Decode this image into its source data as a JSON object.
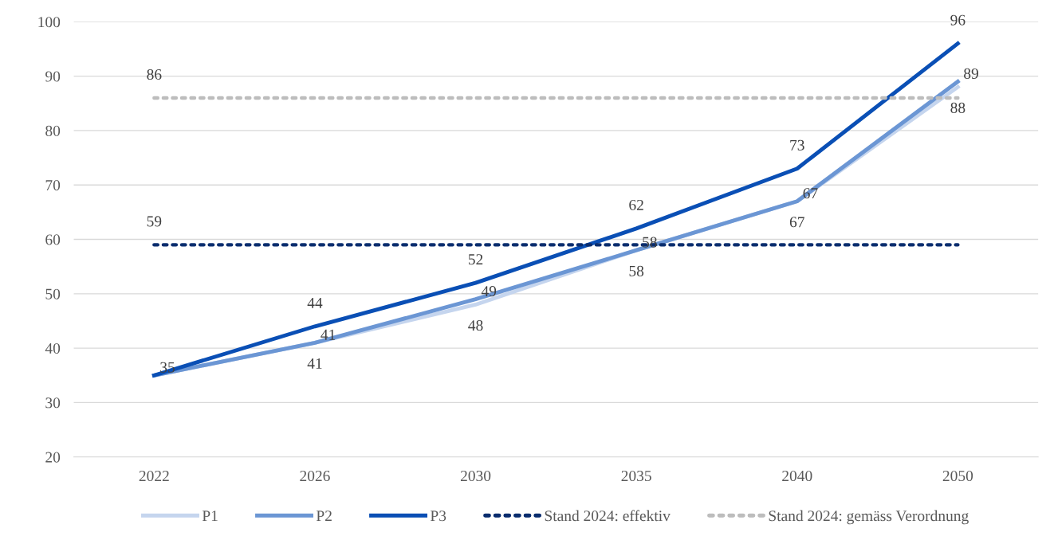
{
  "chart_data": {
    "type": "line",
    "categories": [
      "2022",
      "2026",
      "2030",
      "2035",
      "2040",
      "2050"
    ],
    "series": [
      {
        "name": "P1",
        "color": "#c5d5ee",
        "values": [
          35,
          41,
          48,
          58,
          67,
          88
        ],
        "value_labels": [
          null,
          "41",
          "48",
          "58",
          "67",
          "88"
        ]
      },
      {
        "name": "P2",
        "color": "#6b96d4",
        "values": [
          35,
          41,
          49,
          58,
          67,
          89
        ],
        "value_labels": [
          "35",
          "41",
          "49",
          "58",
          "67",
          "89"
        ]
      },
      {
        "name": "P3",
        "color": "#0a4fb5",
        "values": [
          35,
          44,
          52,
          62,
          73,
          96
        ],
        "value_labels": [
          null,
          "44",
          "52",
          "62",
          "73",
          "96"
        ]
      },
      {
        "name": "Stand 2024: effektiv",
        "color": "#0a2d6e",
        "line_style": "dotted",
        "values": [
          59,
          59,
          59,
          59,
          59,
          59
        ],
        "value_labels": [
          "59",
          null,
          null,
          null,
          null,
          null
        ]
      },
      {
        "name": "Stand 2024: gemäss Verordnung",
        "color": "#bdbdbd",
        "line_style": "dotted",
        "values": [
          86,
          86,
          86,
          86,
          86,
          86
        ],
        "value_labels": [
          "86",
          null,
          null,
          null,
          null,
          null
        ]
      }
    ],
    "ylim": [
      20,
      100
    ],
    "yticks": [
      20,
      30,
      40,
      50,
      60,
      70,
      80,
      90,
      100
    ],
    "grid": "y",
    "legend": "bottom",
    "marker": "none"
  }
}
